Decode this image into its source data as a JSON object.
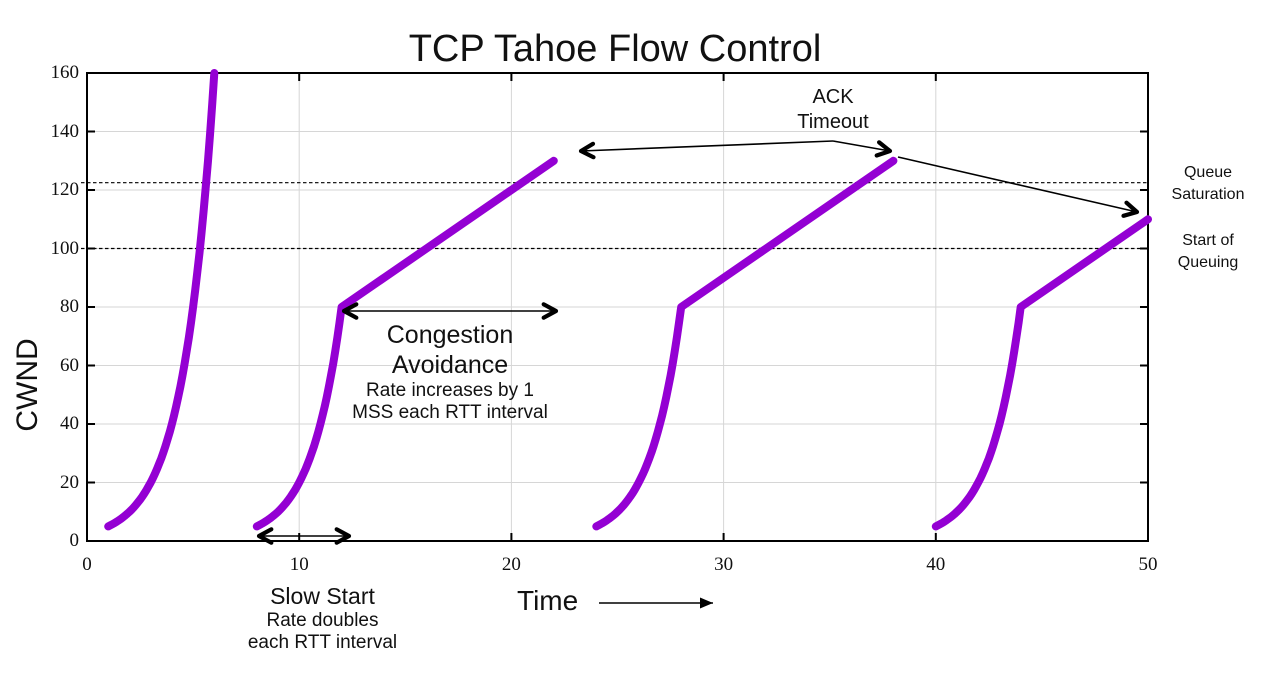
{
  "colors": {
    "curve": "#9400D3",
    "grid": "#d6d6d6",
    "frame": "#000000",
    "dashed": "#000000",
    "text": "#111111"
  },
  "chart_data": {
    "type": "line",
    "title": "TCP Tahoe Flow Control",
    "xlabel": "Time",
    "ylabel": "CWND",
    "xlim": [
      0,
      50
    ],
    "ylim": [
      0,
      160
    ],
    "xticks": [
      0,
      10,
      20,
      30,
      40,
      50
    ],
    "yticks": [
      0,
      20,
      40,
      60,
      80,
      100,
      120,
      140,
      160
    ],
    "grid": true,
    "legend": "none",
    "series": [
      {
        "name": "cycle-1-slow-start-only",
        "slow_start": [
          [
            1,
            5
          ],
          [
            2,
            10
          ],
          [
            3,
            20
          ],
          [
            4,
            40
          ],
          [
            5,
            80
          ],
          [
            6,
            160
          ]
        ],
        "congestion_avoidance": []
      },
      {
        "name": "cycle-2",
        "slow_start": [
          [
            8,
            5
          ],
          [
            9,
            10
          ],
          [
            10,
            20
          ],
          [
            11,
            40
          ],
          [
            12,
            80
          ]
        ],
        "congestion_avoidance": [
          [
            12,
            80
          ],
          [
            22,
            130
          ]
        ]
      },
      {
        "name": "cycle-3",
        "slow_start": [
          [
            24,
            5
          ],
          [
            25,
            10
          ],
          [
            26,
            20
          ],
          [
            27,
            40
          ],
          [
            28,
            80
          ]
        ],
        "congestion_avoidance": [
          [
            28,
            80
          ],
          [
            38,
            130
          ]
        ]
      },
      {
        "name": "cycle-4",
        "slow_start": [
          [
            40,
            5
          ],
          [
            41,
            10
          ],
          [
            42,
            20
          ],
          [
            43,
            40
          ],
          [
            44,
            80
          ]
        ],
        "congestion_avoidance": [
          [
            44,
            80
          ],
          [
            50,
            110
          ]
        ]
      }
    ],
    "dashed_hlines": [
      {
        "y": 122.5,
        "label": "Queue Saturation"
      },
      {
        "y": 100,
        "label": "Start of Queuing"
      }
    ],
    "annotations": {
      "ack_timeout": {
        "line1": "ACK",
        "line2": "Timeout"
      },
      "congestion_avoidance": {
        "line1": "Congestion",
        "line2": "Avoidance",
        "caption1": "Rate increases by 1",
        "caption2": "MSS each RTT interval"
      },
      "slow_start": {
        "line1": "Slow Start",
        "caption1": "Rate doubles",
        "caption2": "each RTT interval"
      },
      "queue_saturation": {
        "line1": "Queue",
        "line2": "Saturation"
      },
      "start_of_queuing": {
        "line1": "Start of",
        "line2": "Queuing"
      }
    },
    "arrows": [
      {
        "name": "congestion-avoidance-span-arrow",
        "type": "double",
        "from": [
          344,
          311
        ],
        "to": [
          556,
          311
        ]
      },
      {
        "name": "slow-start-span-arrow",
        "type": "double",
        "from": [
          259,
          536
        ],
        "to": [
          349,
          536
        ]
      },
      {
        "name": "ack-timeout-to-cycle2-arrow",
        "type": "single",
        "from": [
          833,
          141
        ],
        "to": [
          581,
          151
        ]
      },
      {
        "name": "ack-timeout-to-cycle3-arrow",
        "type": "single",
        "from": [
          833,
          141
        ],
        "to": [
          890,
          151
        ]
      },
      {
        "name": "ack-timeout-to-cycle4-arrow",
        "type": "single",
        "from": [
          898,
          157
        ],
        "to": [
          1137,
          212
        ]
      },
      {
        "name": "time-direction-arrow",
        "type": "triangle",
        "from": [
          599,
          603
        ],
        "to": [
          713,
          603
        ]
      }
    ]
  }
}
